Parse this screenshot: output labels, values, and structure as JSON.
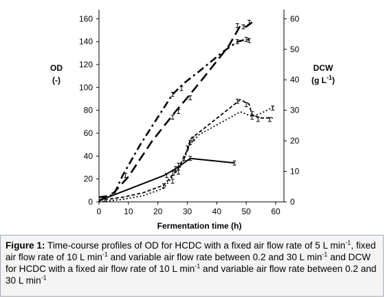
{
  "chart_data": {
    "type": "line",
    "xlabel": "Fermentation time (h)",
    "x_ticks": [
      0,
      10,
      20,
      30,
      40,
      50,
      60
    ],
    "xlim": [
      -3,
      62
    ],
    "y_left": {
      "label_line1": "OD",
      "label_line2": "(-)",
      "ticks": [
        0,
        20,
        40,
        60,
        80,
        100,
        120,
        140,
        160
      ],
      "lim": [
        0,
        168
      ]
    },
    "y_right": {
      "label_line1": "DCW",
      "label_line2": "(g L",
      "label_sup": "-1",
      "label_end": ")",
      "ticks": [
        0,
        10,
        20,
        30,
        40,
        50,
        60
      ],
      "lim": [
        0,
        63
      ]
    },
    "grid": false,
    "legend": "none",
    "series": [
      {
        "axis": "left",
        "style": "solid",
        "points": [
          [
            0,
            1
          ],
          [
            22,
            23
          ],
          [
            26,
            29
          ],
          [
            31,
            38
          ],
          [
            46,
            34
          ]
        ]
      },
      {
        "axis": "left",
        "style": "dash",
        "points": [
          [
            0,
            1
          ],
          [
            5,
            8
          ],
          [
            10,
            22
          ],
          [
            18,
            53
          ],
          [
            26,
            79
          ],
          [
            30,
            91
          ],
          [
            36,
            110
          ],
          [
            44,
            136
          ],
          [
            48,
            154
          ],
          [
            50,
            153
          ],
          [
            52,
            157
          ]
        ]
      },
      {
        "axis": "left",
        "style": "dashdot",
        "points": [
          [
            0,
            4
          ],
          [
            5,
            6
          ],
          [
            8,
            23
          ],
          [
            14,
            50
          ],
          [
            22,
            82
          ],
          [
            25,
            94
          ],
          [
            29,
            104
          ],
          [
            34,
            114
          ],
          [
            42,
            131
          ],
          [
            47,
            140
          ],
          [
            50,
            142
          ],
          [
            52,
            141
          ]
        ]
      },
      {
        "axis": "right",
        "style": "dash-thin",
        "points": [
          [
            0,
            0.5
          ],
          [
            8,
            1.5
          ],
          [
            15,
            3
          ],
          [
            22,
            5.5
          ],
          [
            27,
            11
          ],
          [
            30,
            17
          ],
          [
            31,
            20.5
          ],
          [
            48,
            33.5
          ],
          [
            51,
            32
          ],
          [
            52,
            28.5
          ],
          [
            55,
            27.5
          ],
          [
            59,
            27.5
          ]
        ]
      },
      {
        "axis": "right",
        "style": "dot",
        "points": [
          [
            0,
            0
          ],
          [
            8,
            0.8
          ],
          [
            15,
            2
          ],
          [
            22,
            4.5
          ],
          [
            28,
            12
          ],
          [
            31,
            19
          ],
          [
            34,
            22
          ],
          [
            48,
            29.5
          ],
          [
            52,
            28
          ],
          [
            55,
            29
          ],
          [
            59,
            31
          ]
        ]
      }
    ],
    "error_bars": {
      "left": [
        [
          2,
          2
        ],
        [
          9,
          23
        ],
        [
          23,
          23
        ],
        [
          25,
          25
        ],
        [
          26,
          29
        ],
        [
          27,
          32
        ],
        [
          29,
          38
        ],
        [
          31,
          38
        ],
        [
          46,
          34
        ],
        [
          25,
          74
        ],
        [
          27,
          79
        ],
        [
          31,
          91
        ],
        [
          47,
          154
        ],
        [
          49,
          153
        ],
        [
          51,
          157
        ],
        [
          25,
          94
        ],
        [
          28,
          99
        ],
        [
          47,
          140
        ],
        [
          50,
          142
        ],
        [
          51,
          141
        ],
        [
          22,
          14
        ],
        [
          25,
          18
        ],
        [
          27,
          26
        ],
        [
          30,
          47
        ],
        [
          31,
          52
        ],
        [
          32,
          55
        ],
        [
          47,
          88
        ],
        [
          50,
          85
        ],
        [
          52,
          74
        ],
        [
          54,
          72
        ],
        [
          58,
          72
        ],
        [
          52,
          77
        ],
        [
          59,
          82
        ]
      ]
    }
  },
  "caption": {
    "figure_label": "Figure 1:",
    "text_a": " Time-course profiles of OD for HCDC with a fixed air flow rate of 5 L min",
    "sup1": "-1",
    "text_b": ", fixed air flow rate of 10 L min",
    "sup2": "-1",
    "text_c": " and variable air flow rate between 0.2 and 30 L min",
    "sup3": "-1",
    "text_d": " and DCW for HCDC with a fixed air flow rate of 10 L min",
    "sup4": "-1",
    "text_e": " and variable air flow rate between 0.2 and 30 L min",
    "sup5": "-1"
  }
}
